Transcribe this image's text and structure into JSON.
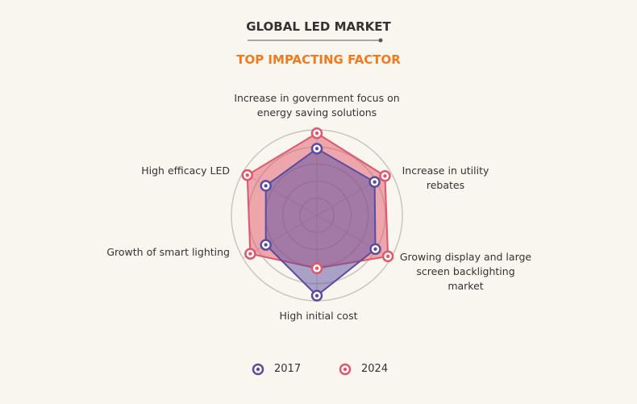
{
  "chart_data": {
    "type": "radar",
    "title": "GLOBAL LED MARKET",
    "subtitle": "TOP IMPACTING FACTOR",
    "categories": [
      "Increase in government focus on energy saving solutions",
      "Increase in utility rebates",
      "Growing display and large screen backlighting market",
      "High initial cost",
      "Growth of smart lighting",
      "High efficacy LED"
    ],
    "series": [
      {
        "name": "2017",
        "color": "#5a4c9e",
        "values": [
          78,
          78,
          79,
          94,
          69,
          69
        ]
      },
      {
        "name": "2024",
        "color": "#e0566a",
        "values": [
          96,
          92,
          96,
          62,
          90,
          94
        ]
      }
    ],
    "rlim": [
      0,
      100
    ],
    "rticks": [
      20,
      40,
      60,
      80,
      100
    ],
    "grid": true
  }
}
